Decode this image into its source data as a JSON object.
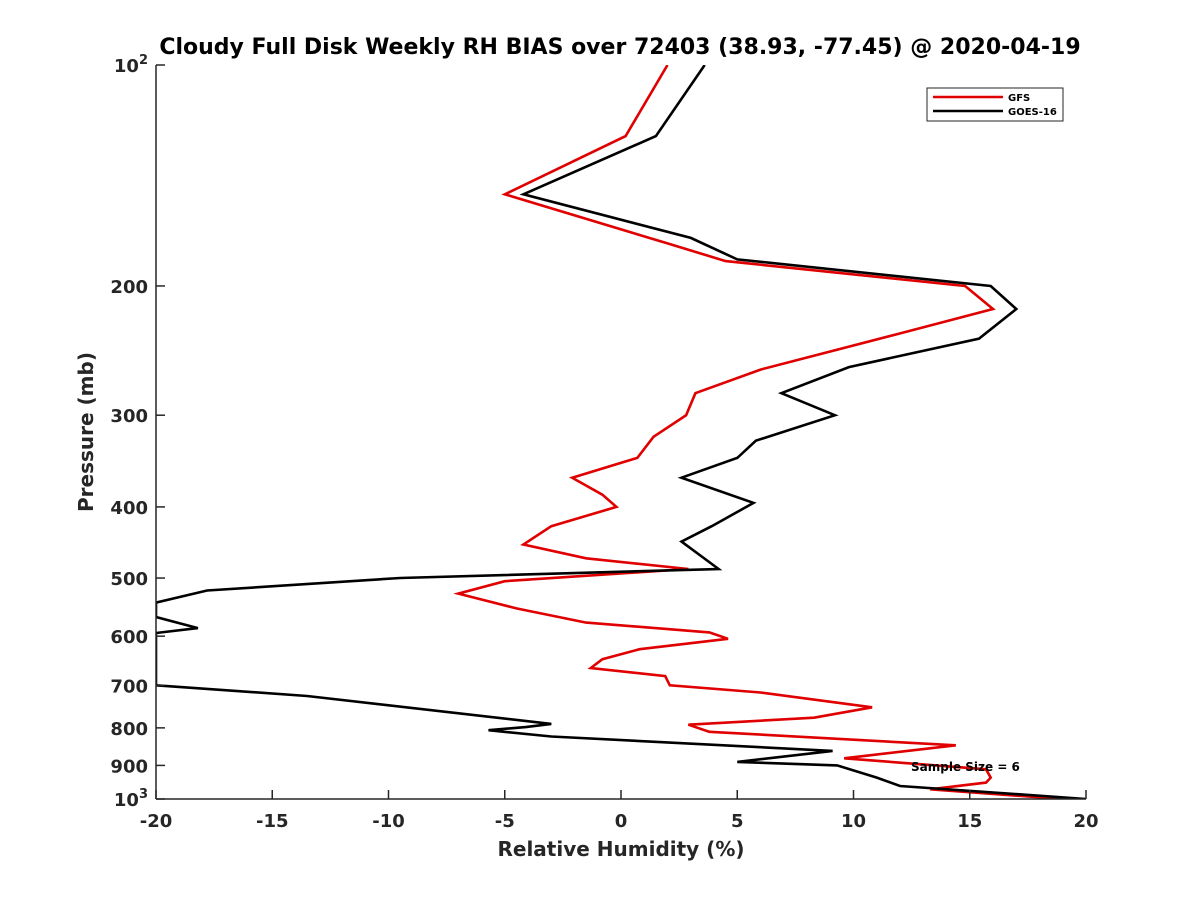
{
  "chart_data": {
    "type": "line",
    "title": "Cloudy Full Disk Weekly RH BIAS over 72403 (38.93, -77.45) @ 2020-04-19",
    "xlabel": "Relative Humidity (%)",
    "ylabel": "Pressure (mb)",
    "xlim": [
      -20,
      20
    ],
    "ylim": [
      100,
      1000
    ],
    "yscale": "log",
    "y_reversed": true,
    "xticks": [
      -20,
      -15,
      -10,
      -5,
      0,
      5,
      10,
      15,
      20
    ],
    "xtick_labels": [
      "-20",
      "-15",
      "-10",
      "-5",
      "0",
      "5",
      "10",
      "15",
      "20"
    ],
    "yticks": [
      100,
      200,
      300,
      400,
      500,
      600,
      700,
      800,
      900,
      1000
    ],
    "ytick_labels": [
      {
        "base": "10",
        "exp": "2"
      },
      {
        "base": "200",
        "exp": ""
      },
      {
        "base": "300",
        "exp": ""
      },
      {
        "base": "400",
        "exp": ""
      },
      {
        "base": "500",
        "exp": ""
      },
      {
        "base": "600",
        "exp": ""
      },
      {
        "base": "700",
        "exp": ""
      },
      {
        "base": "800",
        "exp": ""
      },
      {
        "base": "900",
        "exp": ""
      },
      {
        "base": "10",
        "exp": "3"
      }
    ],
    "grid": false,
    "legend_position": "top-right",
    "annotation": "Sample Size = 6",
    "series": [
      {
        "name": "GFS",
        "color": "#e00000",
        "points": [
          [
            2.0,
            100
          ],
          [
            0.2,
            125
          ],
          [
            -5.0,
            150
          ],
          [
            2.0,
            175
          ],
          [
            4.5,
            185
          ],
          [
            14.8,
            200
          ],
          [
            16.0,
            215
          ],
          [
            11.8,
            233
          ],
          [
            6.0,
            260
          ],
          [
            3.2,
            280
          ],
          [
            2.8,
            300
          ],
          [
            1.4,
            321
          ],
          [
            0.7,
            343
          ],
          [
            -2.1,
            365
          ],
          [
            -0.8,
            385
          ],
          [
            -0.2,
            400
          ],
          [
            -3.0,
            425
          ],
          [
            -4.2,
            450
          ],
          [
            -1.5,
            470
          ],
          [
            2.9,
            486
          ],
          [
            -5.0,
            505
          ],
          [
            -7.0,
            525
          ],
          [
            -4.5,
            550
          ],
          [
            -1.5,
            575
          ],
          [
            3.8,
            593
          ],
          [
            4.6,
            605
          ],
          [
            0.8,
            625
          ],
          [
            -0.8,
            645
          ],
          [
            -1.3,
            663
          ],
          [
            1.9,
            680
          ],
          [
            2.1,
            700
          ],
          [
            6.0,
            716
          ],
          [
            10.8,
            750
          ],
          [
            8.3,
            775
          ],
          [
            2.9,
            792
          ],
          [
            3.8,
            810
          ],
          [
            14.4,
            845
          ],
          [
            9.6,
            880
          ],
          [
            15.7,
            911
          ],
          [
            15.9,
            935
          ],
          [
            15.7,
            950
          ],
          [
            13.3,
            970
          ],
          [
            19.0,
            1000
          ]
        ]
      },
      {
        "name": "GOES-16",
        "color": "#000000",
        "points": [
          [
            3.6,
            100
          ],
          [
            1.5,
            125
          ],
          [
            -4.2,
            150
          ],
          [
            3.0,
            172
          ],
          [
            5.0,
            184
          ],
          [
            15.9,
            200
          ],
          [
            17.0,
            215
          ],
          [
            15.4,
            236
          ],
          [
            9.8,
            258
          ],
          [
            6.9,
            280
          ],
          [
            9.2,
            300
          ],
          [
            5.8,
            325
          ],
          [
            5.0,
            343
          ],
          [
            2.6,
            365
          ],
          [
            5.7,
            395
          ],
          [
            3.9,
            425
          ],
          [
            2.6,
            446
          ],
          [
            4.2,
            486
          ],
          [
            -9.5,
            500
          ],
          [
            -17.8,
            520
          ],
          [
            -20.0,
            540
          ],
          [
            -20.0,
            565
          ],
          [
            -18.2,
            585
          ],
          [
            -20.0,
            594
          ],
          [
            -20.0,
            700
          ],
          [
            -13.5,
            724
          ],
          [
            -3.0,
            790
          ],
          [
            -4.1,
            798
          ],
          [
            -5.7,
            806
          ],
          [
            -3.0,
            822
          ],
          [
            9.1,
            860
          ],
          [
            5.0,
            890
          ],
          [
            9.3,
            900
          ],
          [
            11.0,
            935
          ],
          [
            12.0,
            960
          ],
          [
            20.0,
            1000
          ]
        ]
      }
    ]
  }
}
